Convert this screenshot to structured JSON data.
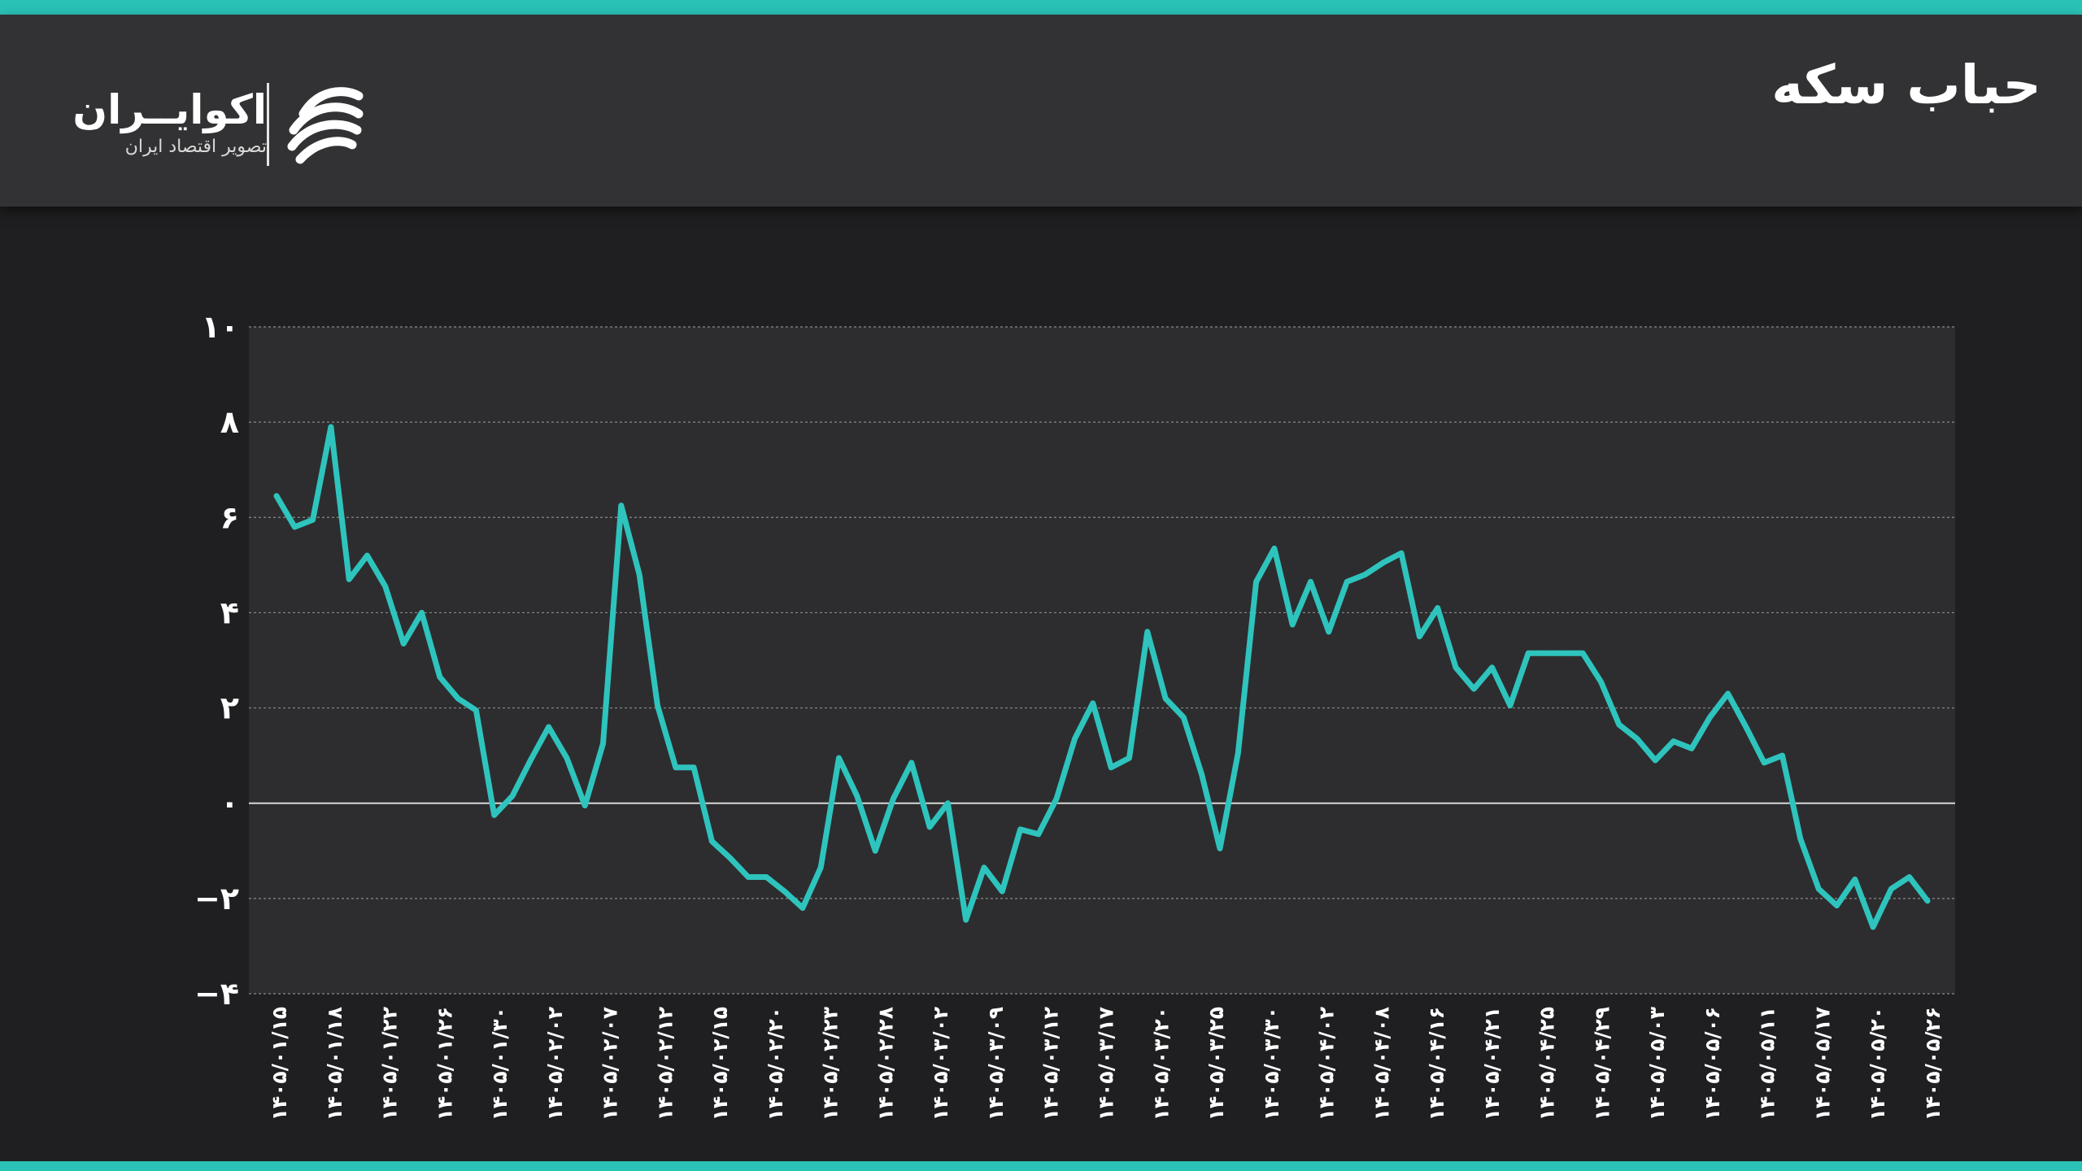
{
  "header": {
    "title": "حباب سکه",
    "logo": {
      "name": "اکوایــران",
      "tagline": "تصویر اقتصاد ایران"
    }
  },
  "colors": {
    "accent": "#2ac2b6",
    "line": "#2ec4bd",
    "header_bg": "#323234",
    "page_bg": "#1f1f21",
    "plot_bg": "#2d2d2f"
  },
  "chart_data": {
    "type": "line",
    "title": "حباب سکه",
    "xlabel": "",
    "ylabel": "",
    "ylim": [
      -4,
      10
    ],
    "yticks": [
      10,
      8,
      6,
      4,
      2,
      0,
      -2,
      -4
    ],
    "ytick_labels": [
      "۱۰",
      "۸",
      "۶",
      "۴",
      "۲",
      "۰",
      "−۲",
      "−۴"
    ],
    "grid": true,
    "zero_line": true,
    "x_tick_labels": [
      "۱۴۰۵/۰۱/۱۵",
      "۱۴۰۵/۰۱/۱۸",
      "۱۴۰۵/۰۱/۲۲",
      "۱۴۰۵/۰۱/۲۶",
      "۱۴۰۵/۰۱/۳۰",
      "۱۴۰۵/۰۲/۰۲",
      "۱۴۰۵/۰۲/۰۷",
      "۱۴۰۵/۰۲/۱۲",
      "۱۴۰۵/۰۲/۱۵",
      "۱۴۰۵/۰۲/۲۰",
      "۱۴۰۵/۰۲/۲۳",
      "۱۴۰۵/۰۲/۲۸",
      "۱۴۰۵/۰۳/۰۲",
      "۱۴۰۵/۰۳/۰۹",
      "۱۴۰۵/۰۳/۱۲",
      "۱۴۰۵/۰۳/۱۷",
      "۱۴۰۵/۰۳/۲۰",
      "۱۴۰۵/۰۳/۲۵",
      "۱۴۰۵/۰۳/۳۰",
      "۱۴۰۵/۰۴/۰۲",
      "۱۴۰۵/۰۴/۰۸",
      "۱۴۰۵/۰۴/۱۶",
      "۱۴۰۵/۰۴/۲۱",
      "۱۴۰۵/۰۴/۲۵",
      "۱۴۰۵/۰۴/۲۹",
      "۱۴۰۵/۰۵/۰۳",
      "۱۴۰۵/۰۵/۰۶",
      "۱۴۰۵/۰۵/۱۱",
      "۱۴۰۵/۰۵/۱۷",
      "۱۴۰۵/۰۵/۲۰",
      "۱۴۰۵/۰۵/۲۶"
    ],
    "series": [
      {
        "values": [
          6.45,
          5.8,
          5.95,
          7.9,
          4.7,
          5.2,
          4.55,
          3.35,
          4.0,
          2.65,
          2.2,
          1.95,
          -0.25,
          0.15,
          0.9,
          1.6,
          0.95,
          -0.05,
          1.25,
          6.25,
          4.8,
          2.05,
          0.75,
          0.75,
          -0.8,
          -1.15,
          -1.55,
          -1.55,
          -1.85,
          -2.2,
          -1.35,
          0.95,
          0.15,
          -1.0,
          0.1,
          0.85,
          -0.5,
          0.0,
          -2.45,
          -1.35,
          -1.85,
          -0.55,
          -0.65,
          0.1,
          1.35,
          2.1,
          0.75,
          0.95,
          3.6,
          2.2,
          1.8,
          0.6,
          -0.95,
          1.05,
          4.65,
          5.35,
          3.75,
          4.65,
          3.6,
          4.65,
          4.8,
          5.05,
          5.25,
          3.5,
          4.1,
          2.85,
          2.4,
          2.85,
          2.05,
          3.15,
          3.15,
          3.15,
          3.15,
          2.55,
          1.65,
          1.35,
          0.9,
          1.3,
          1.15,
          1.8,
          2.3,
          1.6,
          0.85,
          1.0,
          -0.75,
          -1.8,
          -2.15,
          -1.6,
          -2.6,
          -1.8,
          -1.55,
          -2.05
        ]
      }
    ]
  }
}
